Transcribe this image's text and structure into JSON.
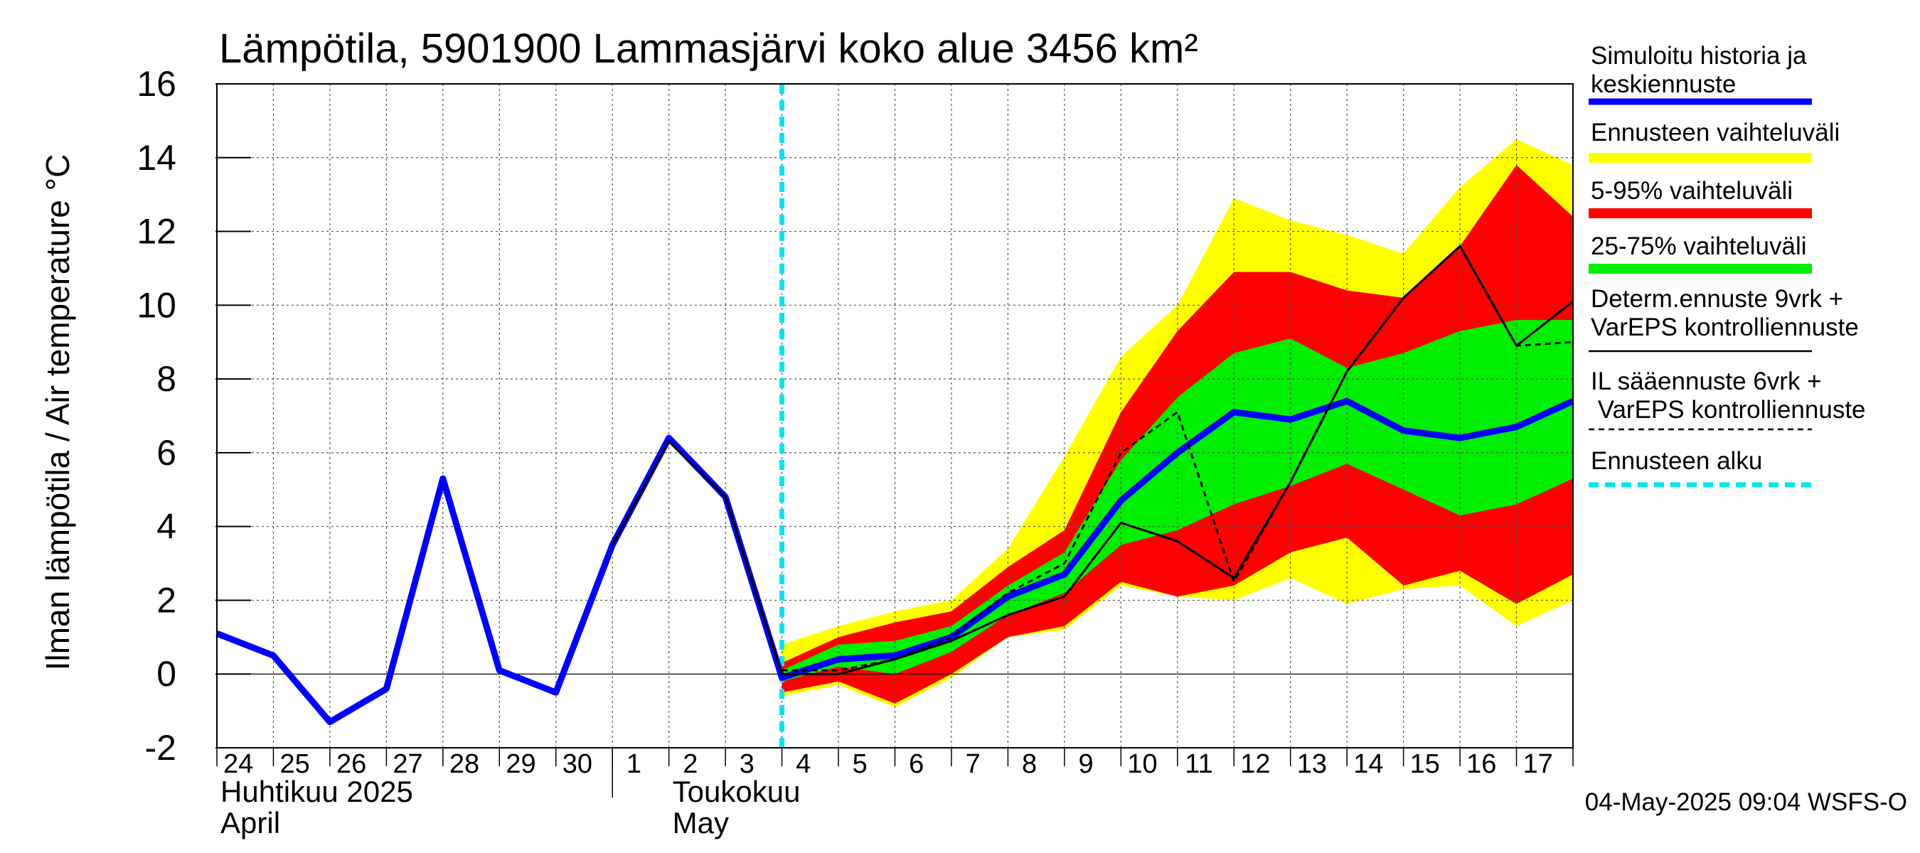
{
  "chart_data": {
    "type": "area",
    "title": "Lämpötila, 5901900 Lammasjärvi koko alue 3456 km²",
    "ylabel": "Ilman lämpötila / Air temperature    °C",
    "ylim": [
      -2,
      16
    ],
    "yticks": [
      "-2",
      "0",
      "2",
      "4",
      "6",
      "8",
      "10",
      "12",
      "14",
      "16"
    ],
    "xlim": [
      0,
      24
    ],
    "day_labels": [
      "24",
      "25",
      "26",
      "27",
      "28",
      "29",
      "30",
      "1",
      "2",
      "3",
      "4",
      "5",
      "6",
      "7",
      "8",
      "9",
      "10",
      "11",
      "12",
      "13",
      "14",
      "15",
      "16",
      "17"
    ],
    "month_labels": [
      {
        "fi": "Huhtikuu  2025",
        "en": "April",
        "day_index": 0
      },
      {
        "fi": "Toukokuu",
        "en": "May",
        "day_index": 8
      }
    ],
    "month_boundary_day": 7,
    "forecast_start_day": 10,
    "band_x": [
      10,
      11,
      12,
      13,
      14,
      15,
      16,
      17,
      18,
      19,
      20,
      21,
      22,
      23,
      24
    ],
    "series": [
      {
        "name": "Ennusteen vaihteluväli",
        "kind": "band",
        "color": "#ffff00",
        "lower": [
          -0.6,
          -0.3,
          -0.9,
          -0.1,
          1.0,
          1.2,
          2.4,
          2.1,
          2.0,
          2.6,
          1.9,
          2.3,
          2.4,
          1.3,
          2.0
        ],
        "upper": [
          0.8,
          1.3,
          1.7,
          2.0,
          3.4,
          5.9,
          8.6,
          10.0,
          12.9,
          12.3,
          11.9,
          11.4,
          13.2,
          14.5,
          13.8
        ]
      },
      {
        "name": "5-95% vaihteluväli",
        "kind": "band",
        "color": "#ff0000",
        "lower": [
          -0.5,
          -0.2,
          -0.8,
          0.0,
          1.0,
          1.3,
          2.5,
          2.1,
          2.4,
          3.3,
          3.7,
          2.4,
          2.8,
          1.9,
          2.7
        ],
        "upper": [
          0.3,
          1.0,
          1.4,
          1.7,
          2.9,
          3.9,
          7.1,
          9.3,
          10.9,
          10.9,
          10.4,
          10.2,
          11.6,
          13.8,
          12.4
        ]
      },
      {
        "name": "25-75% vaihteluväli",
        "kind": "band",
        "color": "#00ee00",
        "lower": [
          -0.2,
          0.2,
          0.0,
          0.6,
          1.6,
          2.2,
          3.5,
          3.9,
          4.6,
          5.1,
          5.7,
          5.0,
          4.3,
          4.6,
          5.3
        ],
        "upper": [
          0.1,
          0.8,
          0.9,
          1.3,
          2.4,
          3.3,
          5.8,
          7.5,
          8.7,
          9.1,
          8.3,
          8.7,
          9.3,
          9.6,
          9.6
        ]
      },
      {
        "name": "Simuloitu historia ja keskiennuste",
        "kind": "line",
        "color": "#0000ff",
        "x": [
          0,
          1,
          2,
          3,
          4,
          5,
          6,
          7,
          8,
          9,
          10,
          11,
          12,
          13,
          14,
          15,
          16,
          17,
          18,
          19,
          20,
          21,
          22,
          23,
          24
        ],
        "values": [
          1.1,
          0.5,
          -1.3,
          -0.4,
          5.3,
          0.1,
          -0.5,
          3.5,
          6.4,
          4.8,
          -0.1,
          0.4,
          0.5,
          1.0,
          2.1,
          2.7,
          4.7,
          6.0,
          7.1,
          6.9,
          7.4,
          6.6,
          6.4,
          6.7,
          7.4
        ]
      },
      {
        "name": "Determ.ennuste 9vrk + VarEPS kontrolliennuste",
        "kind": "line",
        "color": "#000000",
        "x": [
          7,
          8,
          9,
          10,
          11,
          12,
          13,
          14,
          15,
          16,
          17,
          18,
          19,
          20,
          21,
          22,
          23,
          24
        ],
        "values": [
          3.5,
          6.3,
          4.8,
          0.0,
          0.0,
          0.4,
          0.9,
          1.6,
          2.1,
          4.1,
          3.6,
          2.6,
          5.2,
          8.2,
          10.2,
          11.6,
          8.9,
          10.1
        ]
      },
      {
        "name": "IL sääennuste 6vrk + VarEPS kontrolliennuste",
        "kind": "line",
        "color": "#000000",
        "dash": "8,6",
        "x": [
          10,
          11,
          12,
          13,
          14,
          15,
          16,
          17,
          18,
          19,
          20,
          21,
          22,
          23,
          24
        ],
        "values": [
          0.1,
          0.1,
          0.4,
          1.0,
          2.2,
          3.0,
          6.0,
          7.1,
          2.5,
          5.2,
          8.2,
          10.2,
          11.6,
          8.9,
          9.0
        ]
      }
    ],
    "legend": [
      {
        "label": "Simuloitu historia ja keskiennuste",
        "swatch": "line",
        "color": "#0000ff"
      },
      {
        "label": "Ennusteen vaihteluväli",
        "swatch": "bar",
        "color": "#ffff00"
      },
      {
        "label": "5-95% vaihteluväli",
        "swatch": "bar",
        "color": "#ff0000"
      },
      {
        "label": "25-75% vaihteluväli",
        "swatch": "bar",
        "color": "#00ee00"
      },
      {
        "label": "Determ.ennuste 9vrk + VarEPS kontrolliennuste",
        "swatch": "thin",
        "color": "#000000"
      },
      {
        "label": "IL sääennuste 6vrk  +   VarEPS kontrolliennuste",
        "swatch": "dashed",
        "color": "#000000"
      },
      {
        "label": "Ennusteen alku",
        "swatch": "cyan-dashed",
        "color": "#00e5ee"
      }
    ],
    "legend_placement": "right",
    "grid": true,
    "timestamp": "04-May-2025 09:04 WSFS-O"
  }
}
